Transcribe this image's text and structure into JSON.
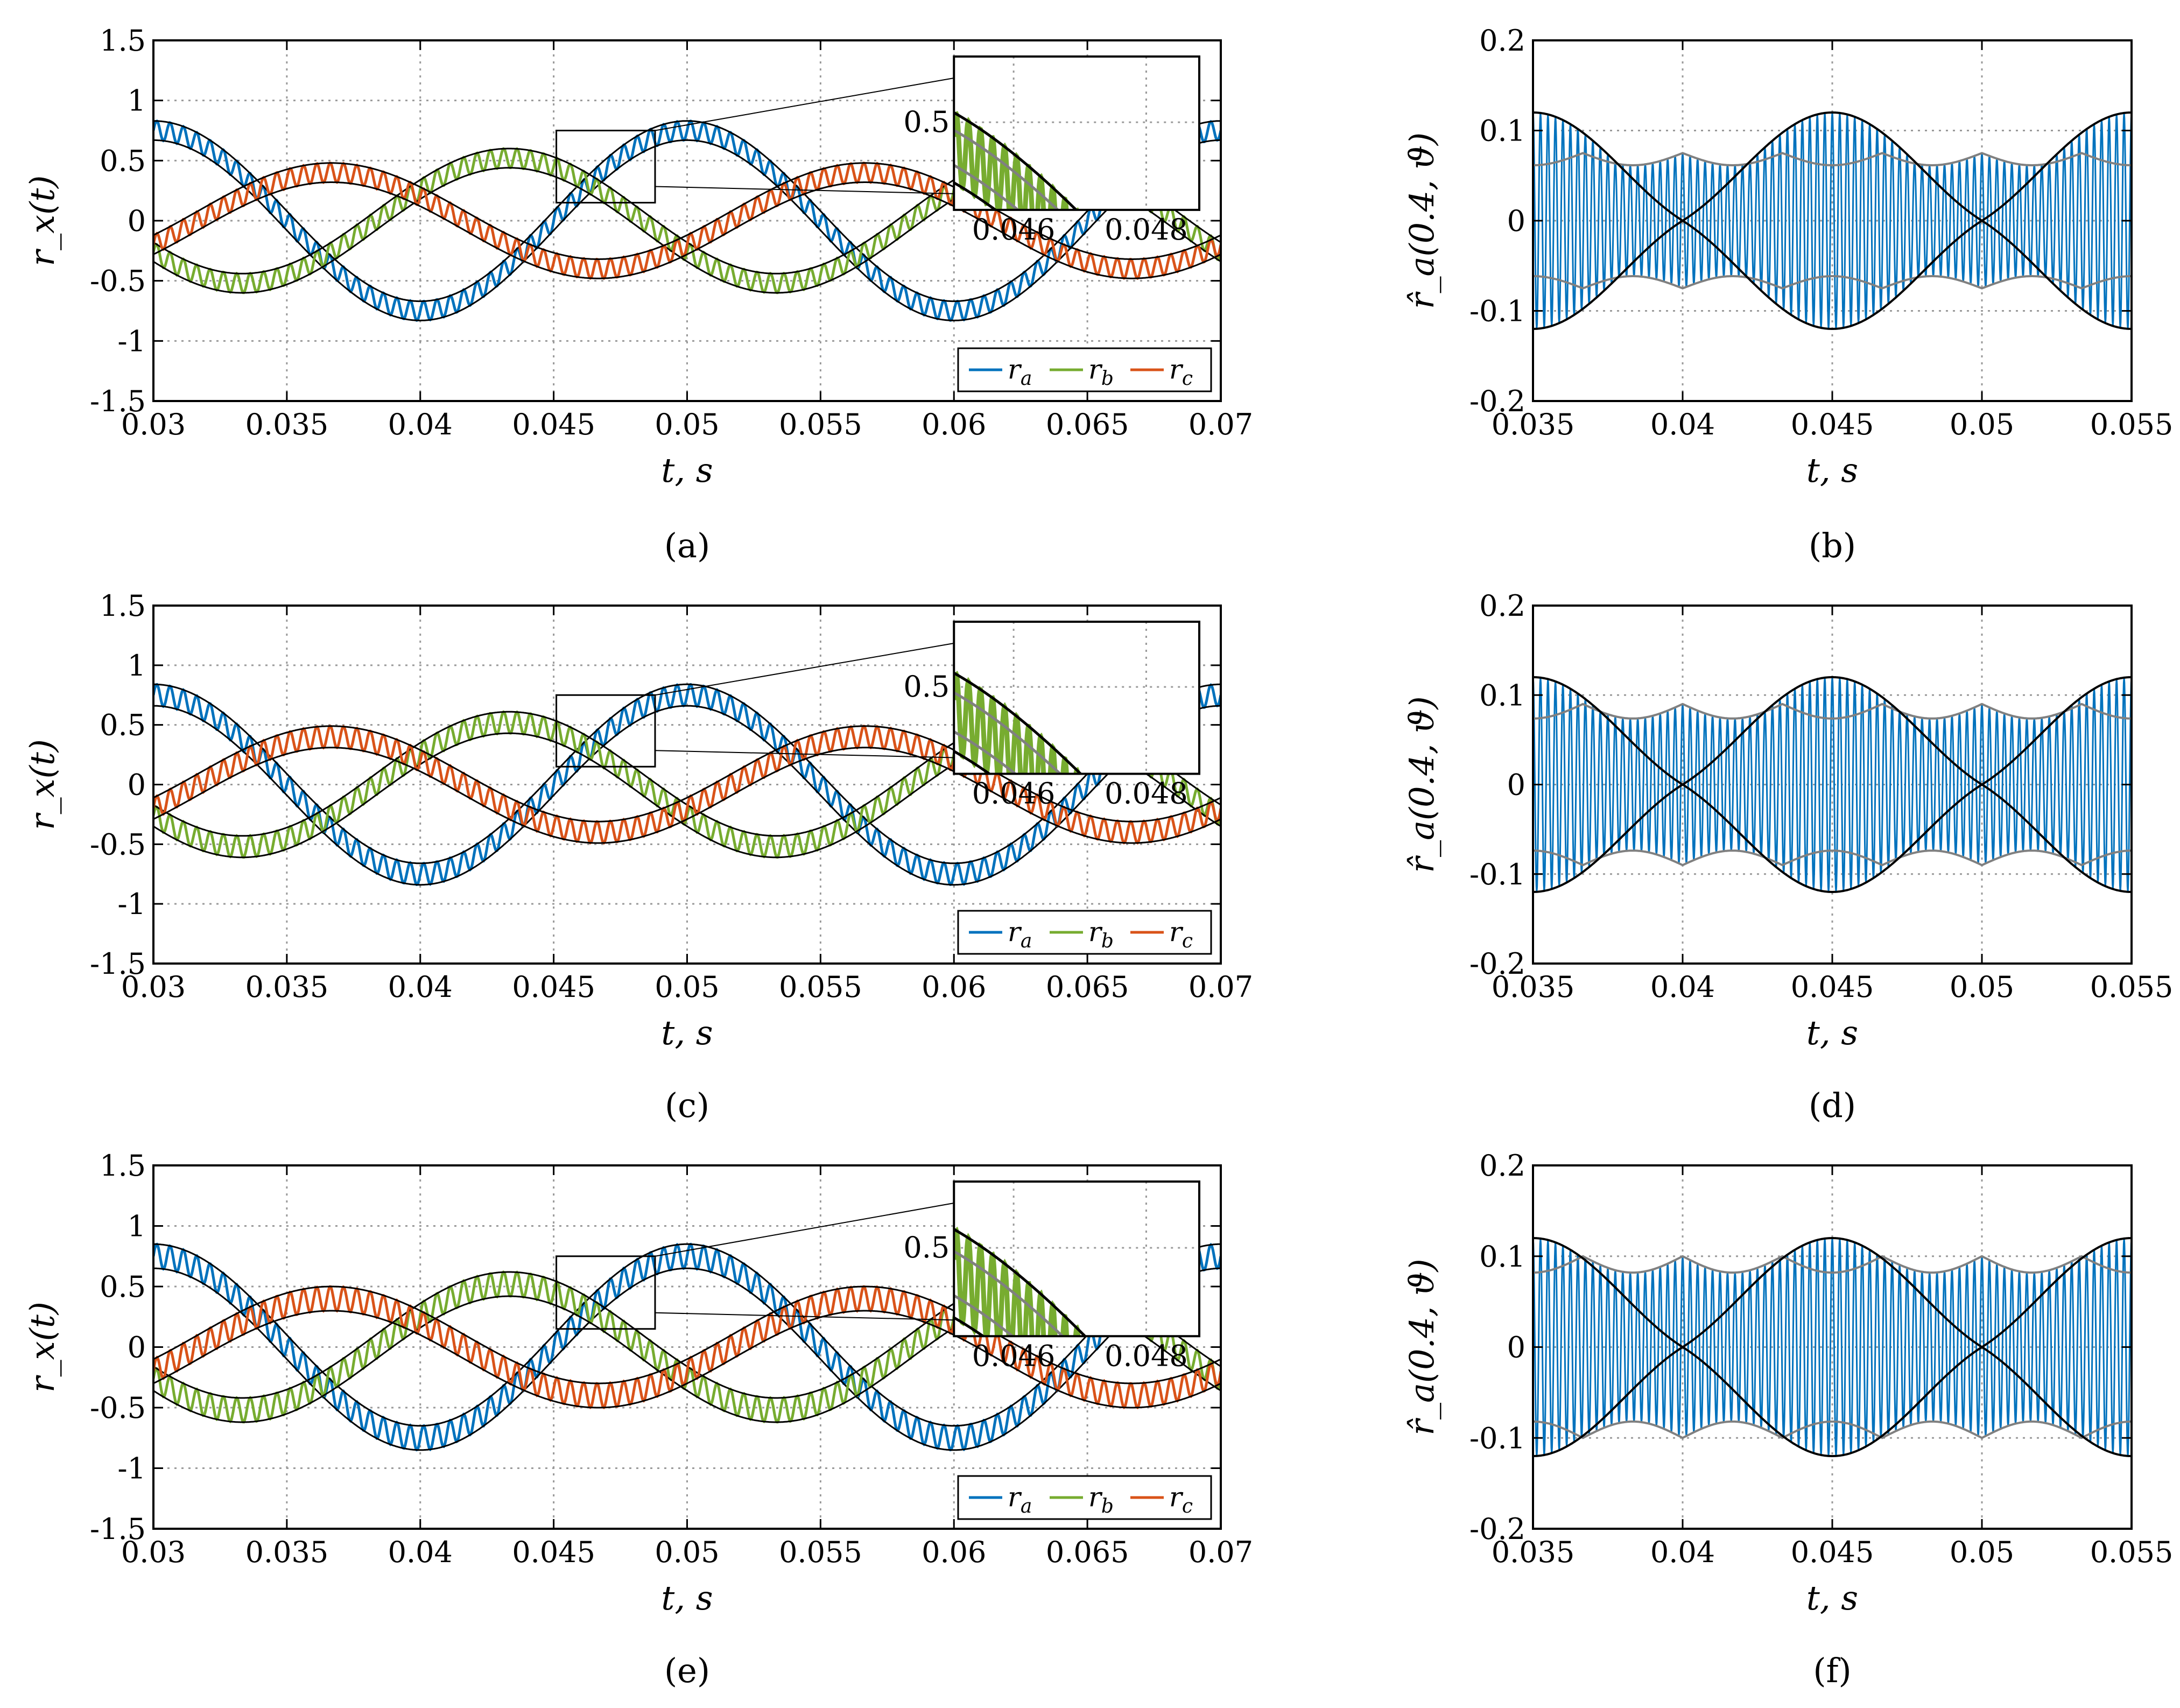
{
  "colors": {
    "ra": "#0072BD",
    "rb": "#77AC30",
    "rc": "#D95319",
    "envelope": "#000000",
    "envelope_gray": "#808080",
    "grid": "#9a9a9a"
  },
  "chart_data": [
    {
      "panel": "a",
      "type": "line",
      "caption": "(a)",
      "xlabel": "t, s",
      "ylabel": "r_x(t)",
      "xlim": [
        0.03,
        0.07
      ],
      "ylim": [
        -1.5,
        1.5
      ],
      "xticks": [
        0.03,
        0.035,
        0.04,
        0.045,
        0.05,
        0.055,
        0.06,
        0.065,
        0.07
      ],
      "xtick_labels": [
        "0.03",
        "0.035",
        "0.04",
        "0.045",
        "0.05",
        "0.055",
        "0.06",
        "0.065",
        "0.07"
      ],
      "yticks": [
        -1.5,
        -1,
        -0.5,
        0,
        0.5,
        1,
        1.5
      ],
      "ytick_labels": [
        "-1.5",
        "-1",
        "-0.5",
        "0",
        "0.5",
        "1",
        "1.5"
      ],
      "series": [
        {
          "name": "r_a",
          "label": "r",
          "sub": "a",
          "color": "#0072BD",
          "amplitude": 0.75,
          "phase_deg": -90,
          "ripple": 0.08
        },
        {
          "name": "r_b",
          "label": "r",
          "sub": "b",
          "color": "#77AC30",
          "amplitude": 0.52,
          "phase_deg": 30,
          "ripple": 0.08
        },
        {
          "name": "r_c",
          "label": "r",
          "sub": "c",
          "color": "#D95319",
          "amplitude": 0.4,
          "phase_deg": 150,
          "ripple": 0.08
        }
      ],
      "frequency_hz": 50,
      "grid": true,
      "legend_position": "bottom-right",
      "inset": {
        "xlim": [
          0.0451,
          0.0488
        ],
        "ylim": [
          0.3,
          0.65
        ],
        "xtick_labels": [
          "0.046",
          "0.048"
        ],
        "xticks": [
          0.046,
          0.048
        ],
        "ytick_labels": [
          "0.5"
        ],
        "yticks": [
          0.5
        ]
      }
    },
    {
      "panel": "b",
      "type": "line",
      "caption": "(b)",
      "xlabel": "t, s",
      "ylabel": "r̂_a(0.4, ϑ)",
      "xlim": [
        0.035,
        0.055
      ],
      "ylim": [
        -0.2,
        0.2
      ],
      "xticks": [
        0.035,
        0.04,
        0.045,
        0.05,
        0.055
      ],
      "xtick_labels": [
        "0.035",
        "0.04",
        "0.045",
        "0.05",
        "0.055"
      ],
      "yticks": [
        -0.2,
        -0.1,
        0,
        0.1,
        0.2
      ],
      "ytick_labels": [
        "-0.2",
        "-0.1",
        "0",
        "0.1",
        "0.2"
      ],
      "black_envelope_peak": 0.12,
      "gray_envelope_level": 0.075,
      "carrier_color": "#0072BD",
      "grid": true
    },
    {
      "panel": "c",
      "type": "line",
      "caption": "(c)",
      "xlabel": "t, s",
      "ylabel": "r_x(t)",
      "xlim": [
        0.03,
        0.07
      ],
      "ylim": [
        -1.5,
        1.5
      ],
      "xticks": [
        0.03,
        0.035,
        0.04,
        0.045,
        0.05,
        0.055,
        0.06,
        0.065,
        0.07
      ],
      "xtick_labels": [
        "0.03",
        "0.035",
        "0.04",
        "0.045",
        "0.05",
        "0.055",
        "0.06",
        "0.065",
        "0.07"
      ],
      "yticks": [
        -1.5,
        -1,
        -0.5,
        0,
        0.5,
        1,
        1.5
      ],
      "ytick_labels": [
        "-1.5",
        "-1",
        "-0.5",
        "0",
        "0.5",
        "1",
        "1.5"
      ],
      "series": [
        {
          "name": "r_a",
          "label": "r",
          "sub": "a",
          "color": "#0072BD",
          "amplitude": 0.75,
          "phase_deg": -90,
          "ripple": 0.09
        },
        {
          "name": "r_b",
          "label": "r",
          "sub": "b",
          "color": "#77AC30",
          "amplitude": 0.52,
          "phase_deg": 30,
          "ripple": 0.09
        },
        {
          "name": "r_c",
          "label": "r",
          "sub": "c",
          "color": "#D95319",
          "amplitude": 0.4,
          "phase_deg": 150,
          "ripple": 0.09
        }
      ],
      "frequency_hz": 50,
      "grid": true,
      "legend_position": "bottom-right",
      "inset": {
        "xlim": [
          0.0451,
          0.0488
        ],
        "ylim": [
          0.3,
          0.65
        ],
        "xtick_labels": [
          "0.046",
          "0.048"
        ],
        "xticks": [
          0.046,
          0.048
        ],
        "ytick_labels": [
          "0.5"
        ],
        "yticks": [
          0.5
        ]
      }
    },
    {
      "panel": "d",
      "type": "line",
      "caption": "(d)",
      "xlabel": "t, s",
      "ylabel": "r̂_a(0.4, ϑ)",
      "xlim": [
        0.035,
        0.055
      ],
      "ylim": [
        -0.2,
        0.2
      ],
      "xticks": [
        0.035,
        0.04,
        0.045,
        0.05,
        0.055
      ],
      "xtick_labels": [
        "0.035",
        "0.04",
        "0.045",
        "0.05",
        "0.055"
      ],
      "yticks": [
        -0.2,
        -0.1,
        0,
        0.1,
        0.2
      ],
      "ytick_labels": [
        "-0.2",
        "-0.1",
        "0",
        "0.1",
        "0.2"
      ],
      "black_envelope_peak": 0.12,
      "gray_envelope_level": 0.09,
      "carrier_color": "#0072BD",
      "grid": true
    },
    {
      "panel": "e",
      "type": "line",
      "caption": "(e)",
      "xlabel": "t, s",
      "ylabel": "r_x(t)",
      "xlim": [
        0.03,
        0.07
      ],
      "ylim": [
        -1.5,
        1.5
      ],
      "xticks": [
        0.03,
        0.035,
        0.04,
        0.045,
        0.05,
        0.055,
        0.06,
        0.065,
        0.07
      ],
      "xtick_labels": [
        "0.03",
        "0.035",
        "0.04",
        "0.045",
        "0.05",
        "0.055",
        "0.06",
        "0.065",
        "0.07"
      ],
      "yticks": [
        -1.5,
        -1,
        -0.5,
        0,
        0.5,
        1,
        1.5
      ],
      "ytick_labels": [
        "-1.5",
        "-1",
        "-0.5",
        "0",
        "0.5",
        "1",
        "1.5"
      ],
      "series": [
        {
          "name": "r_a",
          "label": "r",
          "sub": "a",
          "color": "#0072BD",
          "amplitude": 0.75,
          "phase_deg": -90,
          "ripple": 0.1
        },
        {
          "name": "r_b",
          "label": "r",
          "sub": "b",
          "color": "#77AC30",
          "amplitude": 0.52,
          "phase_deg": 30,
          "ripple": 0.1
        },
        {
          "name": "r_c",
          "label": "r",
          "sub": "c",
          "color": "#D95319",
          "amplitude": 0.4,
          "phase_deg": 150,
          "ripple": 0.1
        }
      ],
      "frequency_hz": 50,
      "grid": true,
      "legend_position": "bottom-right",
      "inset": {
        "xlim": [
          0.0451,
          0.0488
        ],
        "ylim": [
          0.3,
          0.65
        ],
        "xtick_labels": [
          "0.046",
          "0.048"
        ],
        "xticks": [
          0.046,
          0.048
        ],
        "ytick_labels": [
          "0.5"
        ],
        "yticks": [
          0.5
        ]
      }
    },
    {
      "panel": "f",
      "type": "line",
      "caption": "(f)",
      "xlabel": "t, s",
      "ylabel": "r̂_a(0.4, ϑ)",
      "xlim": [
        0.035,
        0.055
      ],
      "ylim": [
        -0.2,
        0.2
      ],
      "xticks": [
        0.035,
        0.04,
        0.045,
        0.05,
        0.055
      ],
      "xtick_labels": [
        "0.035",
        "0.04",
        "0.045",
        "0.05",
        "0.055"
      ],
      "yticks": [
        -0.2,
        -0.1,
        0,
        0.1,
        0.2
      ],
      "ytick_labels": [
        "-0.2",
        "-0.1",
        "0",
        "0.1",
        "0.2"
      ],
      "black_envelope_peak": 0.12,
      "gray_envelope_level": 0.1,
      "carrier_color": "#0072BD",
      "grid": true
    }
  ]
}
